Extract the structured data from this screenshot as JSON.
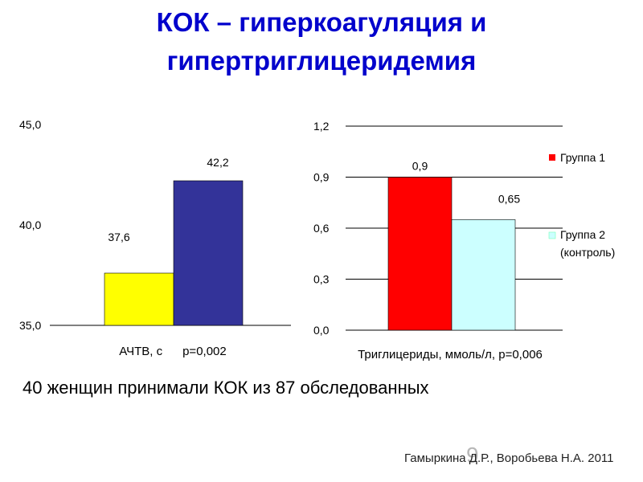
{
  "slide": {
    "title_line1": "КОК – гиперкоагуляция и",
    "title_line2": "гипертриглицеридемия",
    "caption": "40 женщин принимали КОК из 87 обследованных",
    "page_number": "9",
    "author": "Гамыркина Д.Р., Воробьева Н.А. 2011"
  },
  "chart_data": [
    {
      "type": "bar",
      "xlabel": "АЧТВ, с      р=0,002",
      "ylim": [
        35,
        45
      ],
      "yticks": [
        "35,0",
        "40,0",
        "45,0"
      ],
      "ytick_values": [
        35,
        40,
        45
      ],
      "grid": false,
      "bars": [
        {
          "value": 37.6,
          "label": "37,6",
          "color": "#ffff00"
        },
        {
          "value": 42.2,
          "label": "42,2",
          "color": "#333399"
        }
      ]
    },
    {
      "type": "bar",
      "xlabel": "Триглицериды, ммоль/л, р=0,006",
      "ylim": [
        0,
        1.2
      ],
      "yticks": [
        "0,0",
        "0,3",
        "0,6",
        "0,9",
        "1,2"
      ],
      "ytick_values": [
        0,
        0.3,
        0.6,
        0.9,
        1.2
      ],
      "grid": true,
      "legend_position": "right",
      "series": [
        {
          "name": "Группа 1",
          "value": 0.9,
          "label": "0,9",
          "color": "#ff0000"
        },
        {
          "name": "Группа 2 (контроль)",
          "name_line1": "Группа 2",
          "name_line2": "(контроль)",
          "value": 0.65,
          "label": "0,65",
          "color": "#ccffff"
        }
      ]
    }
  ]
}
